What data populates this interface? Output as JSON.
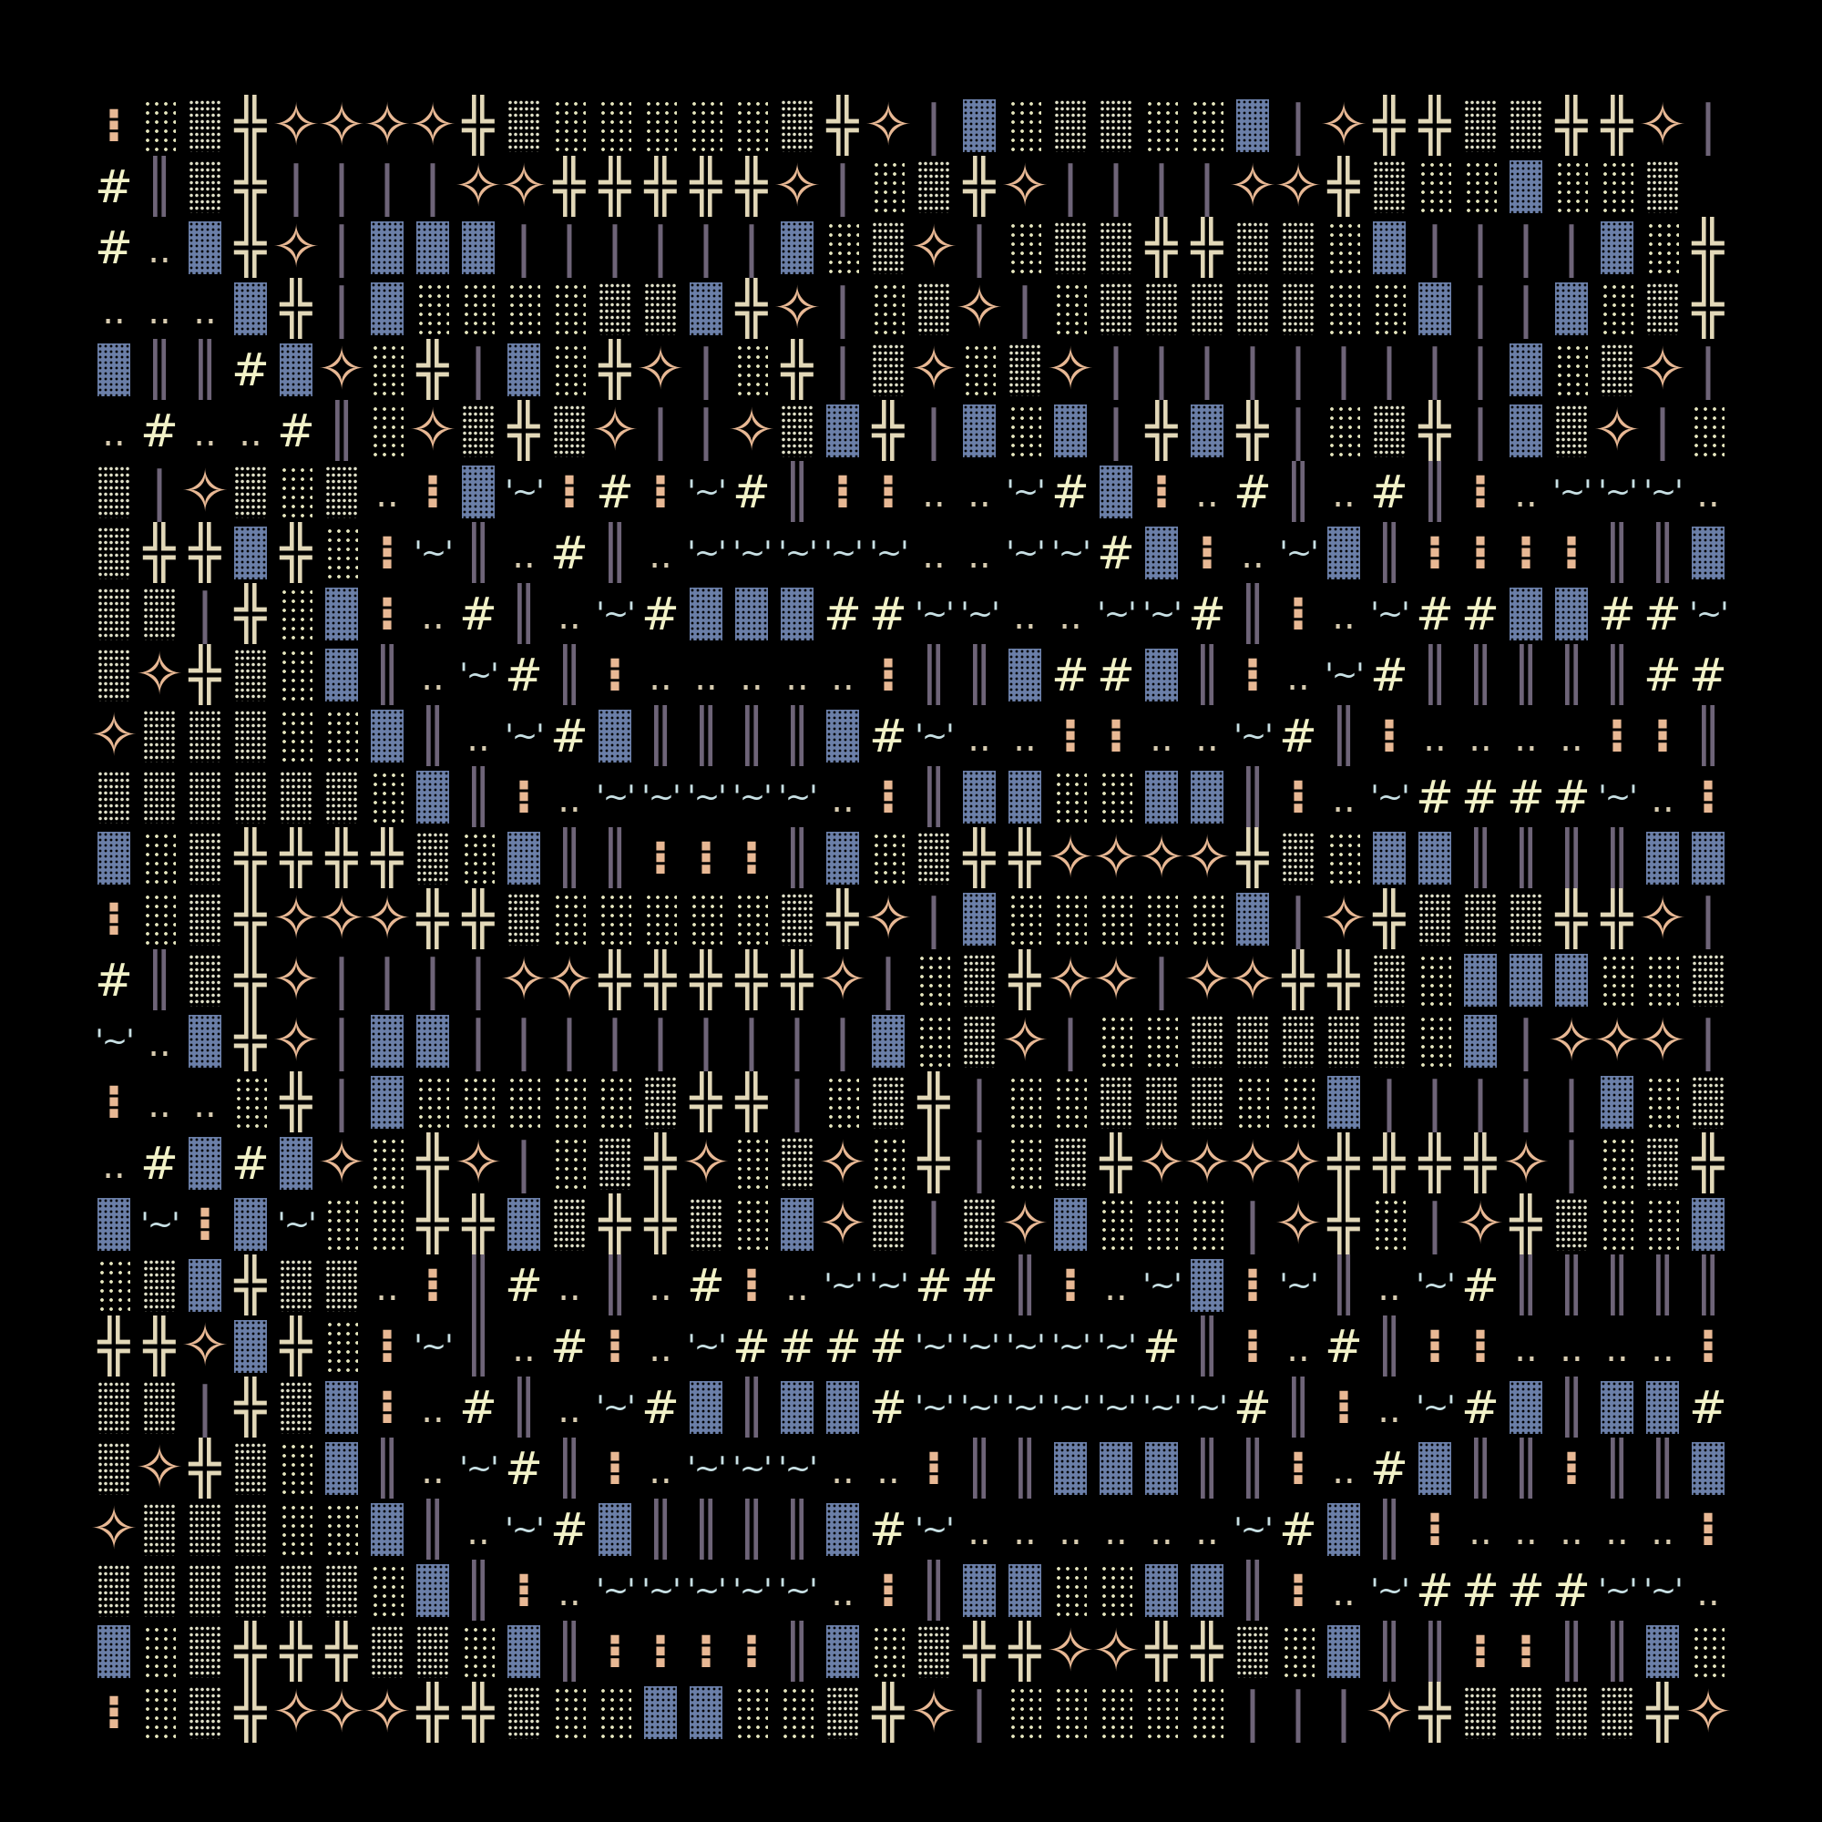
{
  "palette": {
    "background": "#000000",
    "peach": "#e8b894",
    "cream": "#e2d8b8",
    "blue": "#6b7fa8",
    "grey": "#6e6478",
    "hash": "#f2f2c8",
    "tilde": "#c8e0e4"
  },
  "glyphs": {
    ":": {
      "char": "⁝",
      "cls": "g-colon",
      "name": "colon-glyph"
    },
    "s": {
      "char": "",
      "cls": "g-s",
      "name": "sparse-shade-glyph"
    },
    "d": {
      "char": "",
      "cls": "g-d",
      "name": "dense-shade-glyph"
    },
    "B": {
      "char": "",
      "cls": "g-B",
      "name": "blue-block-glyph"
    },
    "+": {
      "char": "╬",
      "cls": "g-cross",
      "name": "cross-glyph"
    },
    "*": {
      "char": "✧",
      "cls": "g-star",
      "name": "star-glyph"
    },
    "|": {
      "char": "|",
      "cls": "g-bar",
      "name": "bar-glyph"
    },
    "H": {
      "char": "║",
      "cls": "g-dbar",
      "name": "double-bar-glyph"
    },
    "#": {
      "char": "#",
      "cls": "g-hash",
      "name": "hash-glyph"
    },
    ".": {
      "char": "..",
      "cls": "g-dots",
      "name": "dots-glyph"
    },
    "~": {
      "char": "'~'",
      "cls": "g-tilde",
      "name": "tilde-glyph"
    },
    " ": {
      "char": "",
      "cls": "",
      "name": "empty-cell"
    }
  },
  "rows": [
    ":sd+****+dsssssd+*|BsddssB|*++dd++*|",
    "#Hd+||||**+++++*|sd+*||||**+dssBssd",
    "#.B+*|BBB||||||Bsd*|sdd++ddsB||||Bs+",
    "...B+|BssssddB+*|sd*|sdddddssB||Bsd+",
    "BHH#B*s+|Bs+*|s+|d*sd*|||||||||Bsd*|",
    ".#..#Hs*d+d*||*dB+|BsB|+B+|sd+|Bd*|s",
    "d|*dsd.:B~:#:~#H::..~#B:.#H.#H:.~~~.",
    "d++B+s:~H.#H.~~~~~..~~#B:.~BH::::HHB",
    "dd|+sB:.#H.~#BBB##~~..~~#H:.~##BB##~",
    "d*+dsBH.~#H:.....:HHB##BH:.~#HHHHH##",
    "*dddssBH.~#BHHHHB#~..::..~#H:....::H",
    "ddddddsBH:.~~~~~.:HBBssBBH:.~####~.:",
    "Bsd++++dsBHH:::HBsd++****+dsBBHHHHBB",
    ":sd+***++dsssssd+*|BsssssB|*+ddd++*|",
    "#Hd+*||||**+++++*|sd+**|**++dsBBBssd",
    "~.B+*|BB|||||||||Bsd*|ssdddddsB|***|",
    ":..s+|Bsssssd++|sd+|ssdddssB|||||Bsd",
    ".#B#B*s+*|sd+*sd*s+|sd+****++++*|sd+",
    "B~:B~ss++Bd++dsB*d|d*Bsss|*+s|*+dssB",
    "sdB+dd.:H#.H.#:.~~##H:.~B:~H.~#HHHHH",
    "++*B+s:~H.#:.~####~~~~~#H:.#H::....:",
    "dd|+dB:.#H.~#BHBB#~~~~~~~#H:.~#BHBB#",
    "d*+dsBH.~#H:.~~~..:HHBBBHH:.#BHH:HHB",
    "*dddssBH.~#BHHHHB#~......~#BH:.....:",
    "ddddddsBH:.~~~~~.:HBBssBBH:.~####~~.",
    "Bsd+++ddsBH::::HBsd++**++dsBHH::HHBs",
    ":sd+***++dssBBssd+*|sssss|||*+dddd+*"
  ]
}
